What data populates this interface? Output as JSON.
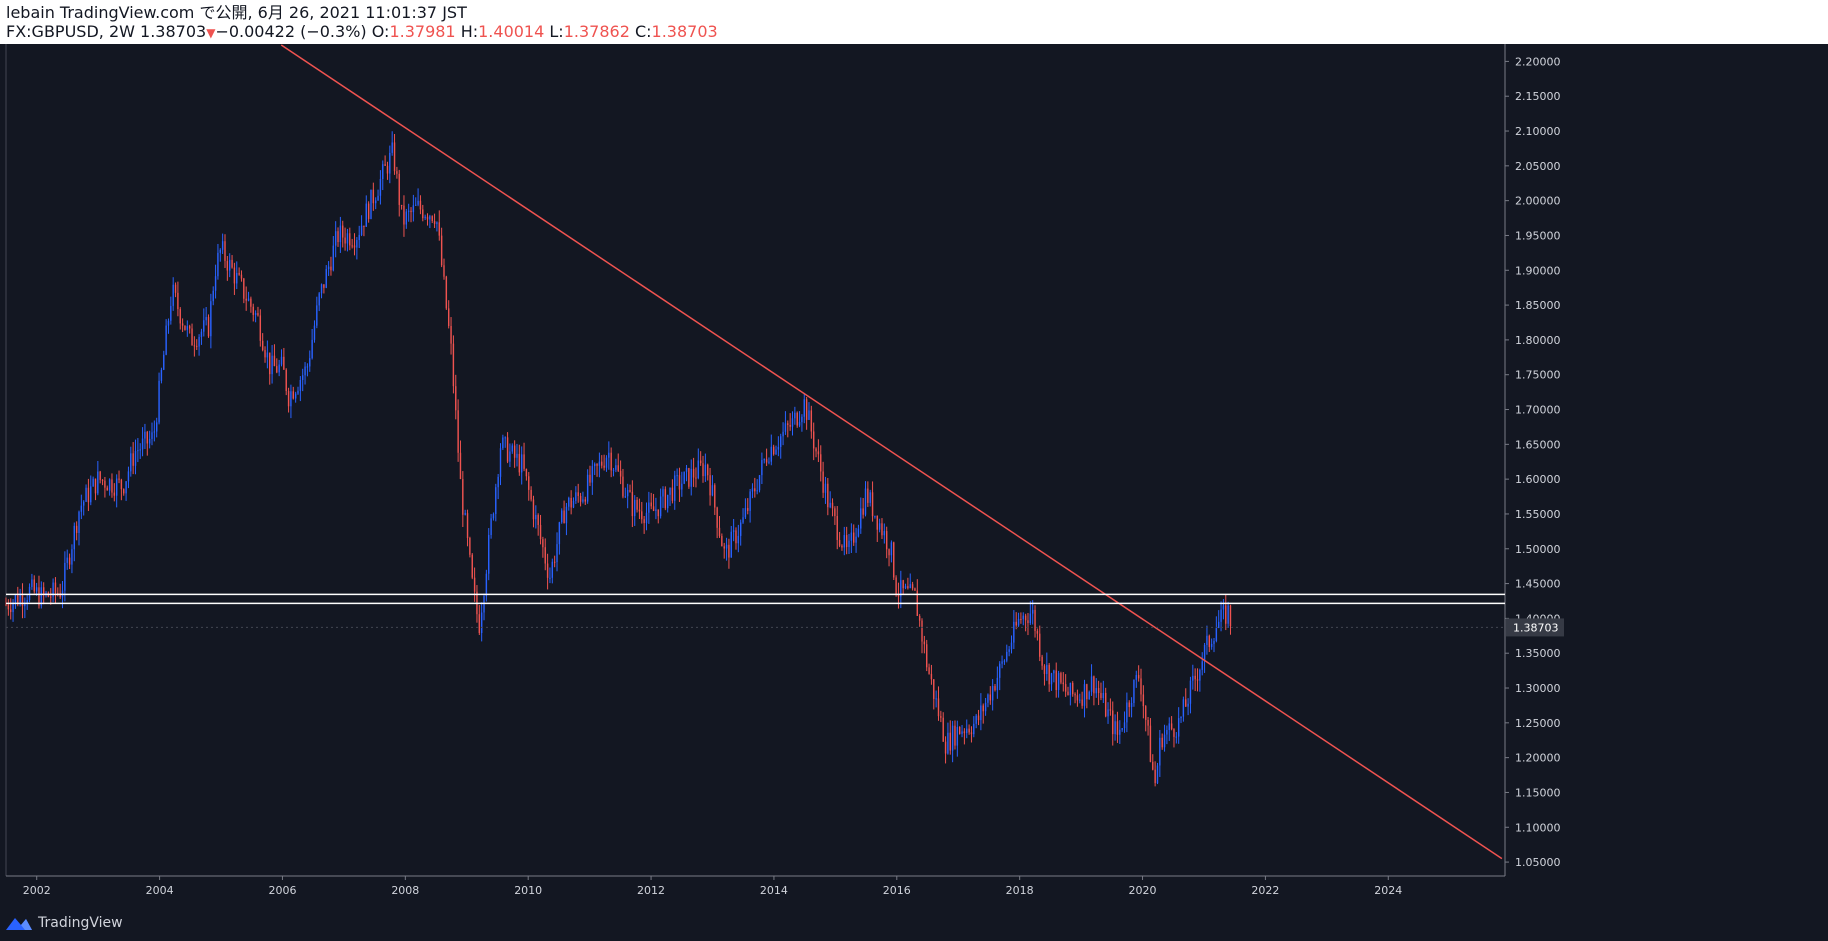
{
  "header": {
    "line1": "lebain TradingView.com で公開, 6月 26, 2021 11:01:37 JST",
    "symbol": "FX:GBPUSD, 2W",
    "last": "1.38703",
    "change_arrow": "▼",
    "change": "−0.00422 (−0.3%)",
    "o_label": "O:",
    "o_value": "1.37981",
    "h_label": "H:",
    "h_value": "1.40014",
    "l_label": "L:",
    "l_value": "1.37862",
    "c_label": "C:",
    "c_value": "1.38703"
  },
  "footer": {
    "brand": "TradingView",
    "logo_icon": "tradingview-logo-icon"
  },
  "colors": {
    "background": "#131722",
    "up": "#2962ff",
    "down": "#ef5350",
    "trendline": "#ef5350",
    "hline": "#ffffff",
    "axis_text": "#d1d4dc",
    "price_tag_bg": "#363a45"
  },
  "chart_data": {
    "type": "candlestick",
    "interval": "2W",
    "symbol": "FX:GBPUSD",
    "xlim": [
      2001.5,
      2025.9
    ],
    "ylim": [
      1.03,
      2.225
    ],
    "x_ticks": [
      "2002",
      "2004",
      "2006",
      "2008",
      "2010",
      "2012",
      "2014",
      "2016",
      "2018",
      "2020",
      "2022",
      "2024"
    ],
    "y_ticks": [
      "1.05000",
      "1.10000",
      "1.15000",
      "1.20000",
      "1.25000",
      "1.30000",
      "1.35000",
      "1.40000",
      "1.45000",
      "1.50000",
      "1.55000",
      "1.60000",
      "1.65000",
      "1.70000",
      "1.75000",
      "1.80000",
      "1.85000",
      "1.90000",
      "1.95000",
      "2.00000",
      "2.05000",
      "2.10000",
      "2.15000",
      "2.20000"
    ],
    "last_price_label": "1.38703",
    "last_price": 1.38703,
    "price_path": [
      [
        2001.5,
        1.42
      ],
      [
        2001.9,
        1.44
      ],
      [
        2002.1,
        1.43
      ],
      [
        2002.4,
        1.44
      ],
      [
        2002.7,
        1.56
      ],
      [
        2003.0,
        1.6
      ],
      [
        2003.4,
        1.59
      ],
      [
        2003.6,
        1.64
      ],
      [
        2003.9,
        1.66
      ],
      [
        2004.1,
        1.8
      ],
      [
        2004.2,
        1.87
      ],
      [
        2004.5,
        1.8
      ],
      [
        2004.8,
        1.82
      ],
      [
        2004.9,
        1.9
      ],
      [
        2005.0,
        1.93
      ],
      [
        2005.3,
        1.88
      ],
      [
        2005.6,
        1.83
      ],
      [
        2005.8,
        1.76
      ],
      [
        2006.0,
        1.76
      ],
      [
        2006.1,
        1.72
      ],
      [
        2006.4,
        1.76
      ],
      [
        2006.6,
        1.86
      ],
      [
        2006.9,
        1.95
      ],
      [
        2007.2,
        1.95
      ],
      [
        2007.4,
        1.99
      ],
      [
        2007.6,
        2.03
      ],
      [
        2007.8,
        2.07
      ],
      [
        2007.95,
        1.97
      ],
      [
        2008.2,
        1.99
      ],
      [
        2008.5,
        1.98
      ],
      [
        2008.75,
        1.78
      ],
      [
        2008.9,
        1.59
      ],
      [
        2009.1,
        1.44
      ],
      [
        2009.2,
        1.39
      ],
      [
        2009.35,
        1.5
      ],
      [
        2009.55,
        1.65
      ],
      [
        2009.9,
        1.62
      ],
      [
        2010.1,
        1.55
      ],
      [
        2010.35,
        1.46
      ],
      [
        2010.6,
        1.56
      ],
      [
        2010.9,
        1.58
      ],
      [
        2011.3,
        1.64
      ],
      [
        2011.7,
        1.56
      ],
      [
        2012.0,
        1.55
      ],
      [
        2012.4,
        1.59
      ],
      [
        2012.9,
        1.62
      ],
      [
        2013.2,
        1.49
      ],
      [
        2013.5,
        1.54
      ],
      [
        2013.9,
        1.64
      ],
      [
        2014.3,
        1.68
      ],
      [
        2014.5,
        1.71
      ],
      [
        2014.9,
        1.56
      ],
      [
        2015.2,
        1.49
      ],
      [
        2015.5,
        1.58
      ],
      [
        2015.9,
        1.5
      ],
      [
        2016.0,
        1.44
      ],
      [
        2016.3,
        1.43
      ],
      [
        2016.5,
        1.33
      ],
      [
        2016.8,
        1.22
      ],
      [
        2017.0,
        1.24
      ],
      [
        2017.3,
        1.25
      ],
      [
        2017.7,
        1.33
      ],
      [
        2018.0,
        1.4
      ],
      [
        2018.2,
        1.41
      ],
      [
        2018.4,
        1.33
      ],
      [
        2018.8,
        1.29
      ],
      [
        2019.0,
        1.29
      ],
      [
        2019.2,
        1.31
      ],
      [
        2019.6,
        1.23
      ],
      [
        2019.8,
        1.29
      ],
      [
        2019.95,
        1.32
      ],
      [
        2020.2,
        1.16
      ],
      [
        2020.3,
        1.23
      ],
      [
        2020.6,
        1.25
      ],
      [
        2020.8,
        1.3
      ],
      [
        2021.0,
        1.35
      ],
      [
        2021.2,
        1.39
      ],
      [
        2021.4,
        1.41
      ],
      [
        2021.45,
        1.387
      ]
    ],
    "annotations": [
      {
        "type": "trendline",
        "from": [
          2005.98,
          2.2235
        ],
        "to": [
          2025.85,
          1.055
        ]
      },
      {
        "type": "horizontal_line",
        "price": 1.4345
      },
      {
        "type": "horizontal_line",
        "price": 1.4215
      }
    ]
  }
}
